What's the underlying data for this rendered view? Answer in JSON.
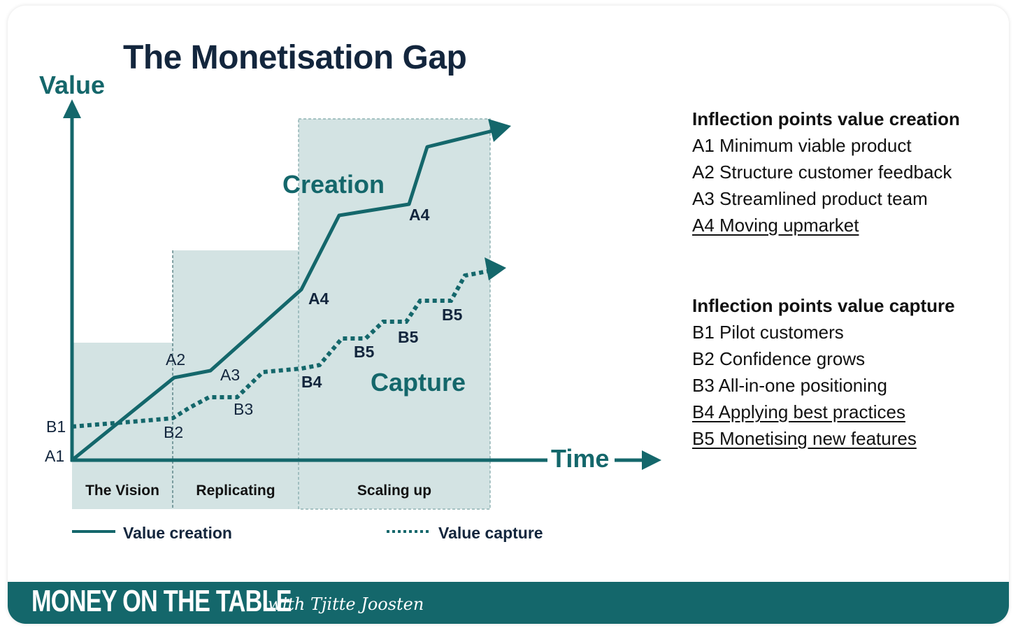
{
  "title": "The Monetisation Gap",
  "axes": {
    "y_label": "Value",
    "x_label": "Time"
  },
  "phases": [
    "The Vision",
    "Replicating",
    "Scaling up"
  ],
  "series_labels": {
    "creation": "Creation",
    "capture": "Capture"
  },
  "legend": {
    "creation": "Value creation",
    "capture": "Value capture"
  },
  "point_labels": {
    "a1": "A1",
    "a2": "A2",
    "a3": "A3",
    "a4_lower": "A4",
    "a4_upper": "A4",
    "b1": "B1",
    "b2": "B2",
    "b3": "B3",
    "b4": "B4",
    "b5_a": "B5",
    "b5_b": "B5",
    "b5_c": "B5"
  },
  "creation_panel": {
    "heading": "Inflection points value creation",
    "items": [
      "A1 Minimum viable product",
      "A2 Structure customer feedback",
      "A3 Streamlined product team",
      "A4 Moving upmarket"
    ]
  },
  "capture_panel": {
    "heading": "Inflection points value capture",
    "items": [
      "B1 Pilot customers",
      "B2 Confidence grows",
      "B3 All-in-one positioning",
      "B4 Applying best practices",
      "B5 Monetising new features"
    ]
  },
  "footer": {
    "brand": "MONEY ON THE TABLE",
    "byline": "with Tjitte Joosten"
  },
  "colors": {
    "teal": "#14676b",
    "navy": "#13263d",
    "shade": "#d3e3e3",
    "text": "#111111"
  }
}
